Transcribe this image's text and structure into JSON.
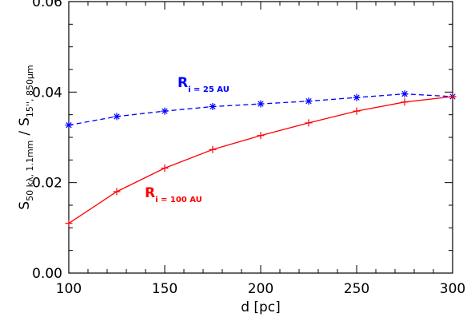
{
  "chart_data": {
    "type": "line",
    "xlabel": "d [pc]",
    "ylabel": {
      "s1": "S",
      "s1_sub": "50 kλ, 1.1mm",
      "slash": "/",
      "s2": "S",
      "s2_sub": "15'', 850μm"
    },
    "xlim": [
      100,
      300
    ],
    "ylim": [
      0.0,
      0.06
    ],
    "xticks": [
      100,
      150,
      200,
      250,
      300
    ],
    "xtick_labels": [
      "100",
      "150",
      "200",
      "250",
      "300"
    ],
    "yticks": [
      0.0,
      0.02,
      0.04,
      0.06
    ],
    "ytick_labels": [
      "0.00",
      "0.02",
      "0.04",
      "0.06"
    ],
    "grid": false,
    "x": [
      100,
      125,
      150,
      175,
      200,
      225,
      250,
      275,
      300
    ],
    "series": [
      {
        "name": "R_i = 25 AU",
        "label_main": "R",
        "label_sub": "i = 25 AU",
        "color": "#0000ff",
        "linestyle": "dashed",
        "marker": "asterisk",
        "values": [
          0.0327,
          0.0346,
          0.0358,
          0.0368,
          0.0374,
          0.038,
          0.0388,
          0.0396,
          0.039
        ]
      },
      {
        "name": "R_i = 100 AU",
        "label_main": "R",
        "label_sub": "i = 100 AU",
        "color": "#ff0000",
        "linestyle": "solid",
        "marker": "plus",
        "values": [
          0.011,
          0.018,
          0.0232,
          0.0273,
          0.0304,
          0.0332,
          0.0358,
          0.0378,
          0.039
        ]
      }
    ]
  }
}
